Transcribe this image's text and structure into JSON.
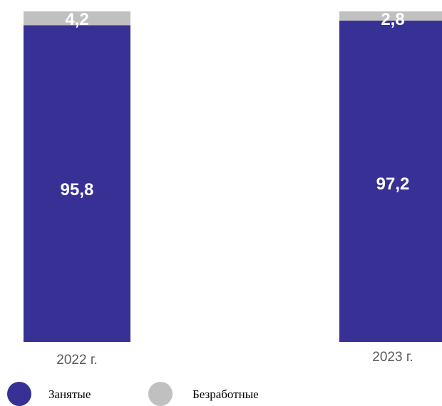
{
  "chart_data": {
    "type": "bar",
    "stacked": true,
    "normalized_percent": true,
    "categories": [
      "2022 г.",
      "2023 г."
    ],
    "series": [
      {
        "name": "Занятые",
        "values": [
          95.8,
          97.2
        ],
        "labels": [
          "95,8",
          "97,2"
        ],
        "color": "#373195"
      },
      {
        "name": "Безработные",
        "values": [
          4.2,
          2.8
        ],
        "labels": [
          "4,2",
          "2,8"
        ],
        "color": "#c0c0c0"
      }
    ],
    "ylim": [
      0,
      100
    ],
    "grid": false,
    "legend": "bottom-left"
  }
}
